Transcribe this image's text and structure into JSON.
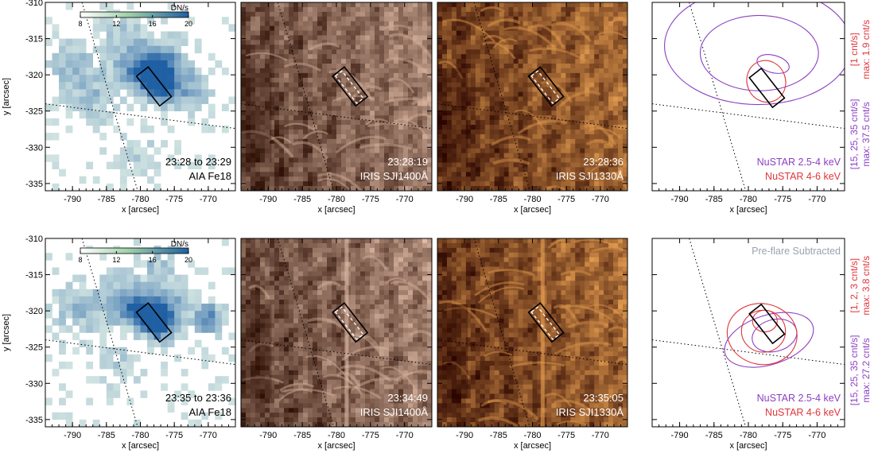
{
  "figure": {
    "xlabel": "x [arcsec]",
    "ylabel": "y [arcsec]",
    "xlim": [
      -794,
      -766
    ],
    "ylim": [
      -336,
      -310
    ],
    "xticks": [
      -790,
      -785,
      -780,
      -775,
      -770
    ],
    "yticks": [
      -310,
      -315,
      -320,
      -325,
      -330,
      -335
    ],
    "colorbar": {
      "unit": "DN/s",
      "ticks": [
        8,
        12,
        16,
        20
      ],
      "range": [
        8,
        20
      ]
    }
  },
  "chart_data": [
    {
      "type": "heatmap",
      "panel": "top-1",
      "instrument": "AIA Fe18",
      "time": "23:28 to 23:29",
      "colormap": [
        "#ffffff",
        "#2f6eae"
      ],
      "grid": "off",
      "box_center": [
        -778,
        -321.6
      ],
      "box_size": [
        2.2,
        5.2
      ],
      "box_angle_deg": 38,
      "limb_lines": [
        [
          [
            -788.6,
            -310
          ],
          [
            -780.4,
            -336
          ]
        ],
        [
          [
            -794,
            -324
          ],
          [
            -766,
            -327.4
          ]
        ]
      ],
      "emission_blobs": [
        {
          "x": -778.5,
          "y": -319.5,
          "sigma": 1.6,
          "amp": 13
        },
        {
          "x": -777.0,
          "y": -321.5,
          "sigma": 1.6,
          "amp": 12
        },
        {
          "x": -776.0,
          "y": -318.0,
          "sigma": 2.2,
          "amp": 7
        },
        {
          "x": -781.0,
          "y": -319.5,
          "sigma": 2.0,
          "amp": 6
        },
        {
          "x": -790.0,
          "y": -319.0,
          "sigma": 2.5,
          "amp": 5
        },
        {
          "x": -773.0,
          "y": -322.0,
          "sigma": 2.2,
          "amp": 6
        },
        {
          "x": -786.0,
          "y": -323.0,
          "sigma": 2.5,
          "amp": 4
        },
        {
          "x": -782.0,
          "y": -315.0,
          "sigma": 2.5,
          "amp": 4
        },
        {
          "x": -780.0,
          "y": -331.0,
          "sigma": 2.0,
          "amp": 3
        }
      ]
    },
    {
      "type": "heatmap",
      "panel": "top-2",
      "instrument": "IRIS SJI1400Å",
      "time": "23:28:19",
      "colormap": [
        "#2e1005",
        "#f2cdb7"
      ],
      "grid": "off",
      "box_center": [
        -778,
        -321.6
      ],
      "box_size": [
        2.2,
        5.2
      ],
      "box_angle_deg": 38,
      "slit_box_center": [
        -778.1,
        -321.7
      ],
      "slit_box_size": [
        1.2,
        4.8
      ],
      "slit_box_angle_deg": 38
    },
    {
      "type": "heatmap",
      "panel": "top-3",
      "instrument": "IRIS SJI1330Å",
      "time": "23:28:36",
      "colormap": [
        "#2b0500",
        "#ffb35c"
      ],
      "grid": "off",
      "box_center": [
        -778,
        -321.6
      ],
      "box_size": [
        2.2,
        5.2
      ],
      "box_angle_deg": 38,
      "slit_box_center": [
        -778.1,
        -321.7
      ],
      "slit_box_size": [
        1.2,
        4.8
      ],
      "slit_box_angle_deg": 38
    },
    {
      "type": "contour",
      "panel": "top-4",
      "series": [
        {
          "name": "NuSTAR 2.5-4 keV",
          "color": "#8a3fc4",
          "levels": [
            15,
            25,
            35
          ],
          "max": 37.5,
          "contours": [
            {
              "cx": -778.6,
              "cy": -316.0,
              "rx": 13.6,
              "ry": 8.1,
              "rot": 0
            },
            {
              "cx": -778.4,
              "cy": -317.0,
              "rx": 8.6,
              "ry": 5.2,
              "rot": 0
            },
            {
              "cx": -776.4,
              "cy": -318.5,
              "rx": 2.4,
              "ry": 1.2,
              "rot": 15
            }
          ]
        },
        {
          "name": "NuSTAR 4-6 keV",
          "color": "#e0353b",
          "levels": [
            1
          ],
          "max": 1.9,
          "contours": [
            {
              "cx": -777.4,
              "cy": -320.9,
              "rx": 2.8,
              "ry": 2.9,
              "rot": -20
            }
          ]
        }
      ],
      "side_labels": {
        "high": "[1 cnt/s]",
        "high_max": "max: 1.9 cnt/s",
        "low": "[15, 25, 35 cnt/s]",
        "low_max": "max: 37.5 cnt/s"
      },
      "box_center": [
        -777.3,
        -321.8
      ],
      "box_size": [
        2.2,
        5.2
      ],
      "box_angle_deg": 38
    },
    {
      "type": "heatmap",
      "panel": "bottom-1",
      "instrument": "AIA Fe18",
      "time": "23:35 to 23:36",
      "colormap": [
        "#ffffff",
        "#2f6eae"
      ],
      "grid": "off",
      "box_center": [
        -778,
        -321.6
      ],
      "box_size": [
        2.2,
        5.2
      ],
      "box_angle_deg": 38,
      "limb_lines": [
        [
          [
            -788.6,
            -310
          ],
          [
            -780.4,
            -336
          ]
        ],
        [
          [
            -794,
            -324
          ],
          [
            -766,
            -327.4
          ]
        ]
      ],
      "emission_blobs": [
        {
          "x": -778.3,
          "y": -320.6,
          "sigma": 1.4,
          "amp": 15
        },
        {
          "x": -777.0,
          "y": -322.0,
          "sigma": 1.5,
          "amp": 12
        },
        {
          "x": -780.5,
          "y": -319.8,
          "sigma": 1.6,
          "amp": 9
        },
        {
          "x": -775.5,
          "y": -319.0,
          "sigma": 2.0,
          "amp": 7
        },
        {
          "x": -770.0,
          "y": -321.0,
          "sigma": 1.4,
          "amp": 10
        },
        {
          "x": -789.0,
          "y": -320.0,
          "sigma": 2.5,
          "amp": 5
        },
        {
          "x": -783.0,
          "y": -318.5,
          "sigma": 2.5,
          "amp": 5
        },
        {
          "x": -778.0,
          "y": -314.0,
          "sigma": 2.0,
          "amp": 4
        },
        {
          "x": -783.0,
          "y": -328.0,
          "sigma": 2.5,
          "amp": 3
        }
      ]
    },
    {
      "type": "heatmap",
      "panel": "bottom-2",
      "instrument": "IRIS SJI1400Å",
      "time": "23:34:49",
      "colormap": [
        "#2e1005",
        "#f2cdb7"
      ],
      "grid": "off",
      "box_center": [
        -778,
        -321.6
      ],
      "box_size": [
        2.2,
        5.2
      ],
      "box_angle_deg": 38,
      "slit_box_center": [
        -778.1,
        -321.7
      ],
      "slit_box_size": [
        1.2,
        4.8
      ],
      "slit_box_angle_deg": 38,
      "slit_x": -778.5
    },
    {
      "type": "heatmap",
      "panel": "bottom-3",
      "instrument": "IRIS SJI1330Å",
      "time": "23:35:05",
      "colormap": [
        "#2b0500",
        "#ffb35c"
      ],
      "grid": "off",
      "box_center": [
        -778,
        -321.6
      ],
      "box_size": [
        2.2,
        5.2
      ],
      "box_angle_deg": 38,
      "slit_box_center": [
        -778.1,
        -321.7
      ],
      "slit_box_size": [
        1.2,
        4.8
      ],
      "slit_box_angle_deg": 38,
      "slit_x": -778.5
    },
    {
      "type": "contour",
      "panel": "bottom-4",
      "annotation": "Pre-flare Subtracted",
      "annotation_color": "#9aa3b0",
      "series": [
        {
          "name": "NuSTAR 2.5-4 keV",
          "color": "#8a3fc4",
          "levels": [
            15,
            25,
            35
          ],
          "max": 27.2,
          "contours": [
            {
              "cx": -777.0,
              "cy": -324.0,
              "rx": 6.7,
              "ry": 3.4,
              "rot": -18
            },
            {
              "cx": -776.2,
              "cy": -323.4,
              "rx": 3.3,
              "ry": 2.2,
              "rot": -15
            }
          ]
        },
        {
          "name": "NuSTAR 4-6 keV",
          "color": "#e0353b",
          "levels": [
            1,
            2,
            3
          ],
          "max": 3.8,
          "contours": [
            {
              "cx": -778.0,
              "cy": -323.2,
              "rx": 5.1,
              "ry": 4.2,
              "rot": 10
            },
            {
              "cx": -777.8,
              "cy": -322.8,
              "rx": 3.2,
              "ry": 2.9,
              "rot": 0
            },
            {
              "cx": -777.6,
              "cy": -321.4,
              "rx": 1.8,
              "ry": 1.5,
              "rot": 0
            }
          ]
        }
      ],
      "side_labels": {
        "high": "[1, 2, 3 cnt/s]",
        "high_max": "max: 3.8 cnt/s",
        "low": "[15, 25, 35 cnt/s]",
        "low_max": "max: 27.2 cnt/s"
      },
      "box_center": [
        -777.3,
        -321.8
      ],
      "box_size": [
        2.2,
        5.2
      ],
      "box_angle_deg": 38
    }
  ]
}
